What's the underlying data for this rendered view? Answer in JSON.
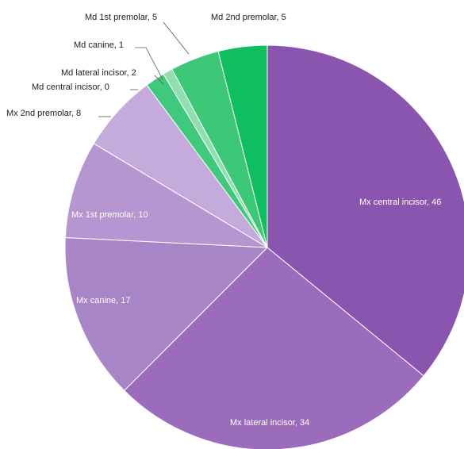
{
  "chart_data": {
    "type": "pie",
    "title": "",
    "slices": [
      {
        "label": "Mx central incisor",
        "value": 46,
        "color": "#8A55AF"
      },
      {
        "label": "Mx lateral incisor",
        "value": 34,
        "color": "#9A6CBB"
      },
      {
        "label": "Mx canine",
        "value": 17,
        "color": "#A885C7"
      },
      {
        "label": "Mx 1st premolar",
        "value": 10,
        "color": "#B596D1"
      },
      {
        "label": "Mx 2nd premolar",
        "value": 8,
        "color": "#C4ABDB"
      },
      {
        "label": "Md central incisor",
        "value": 0,
        "color": "#AEE9C5"
      },
      {
        "label": "Md lateral incisor",
        "value": 2,
        "color": "#3EC97C"
      },
      {
        "label": "Md canine",
        "value": 1,
        "color": "#90DFB0"
      },
      {
        "label": "Md 1st premolar",
        "value": 5,
        "color": "#3DC878"
      },
      {
        "label": "Md 2nd premolar",
        "value": 5,
        "color": "#0FBE5F"
      }
    ],
    "slice_labels": [
      "Mx central incisor, 46",
      "Mx lateral incisor, 34",
      "Mx canine, 17",
      "Mx 1st premolar, 10",
      "Mx 2nd premolar, 8",
      "Md central incisor, 0",
      "Md lateral incisor, 2",
      "Md canine, 1",
      "Md 1st premolar, 5",
      "Md 2nd premolar, 5"
    ],
    "legend": "none",
    "start_angle": "12 o'clock",
    "direction": "clockwise"
  }
}
